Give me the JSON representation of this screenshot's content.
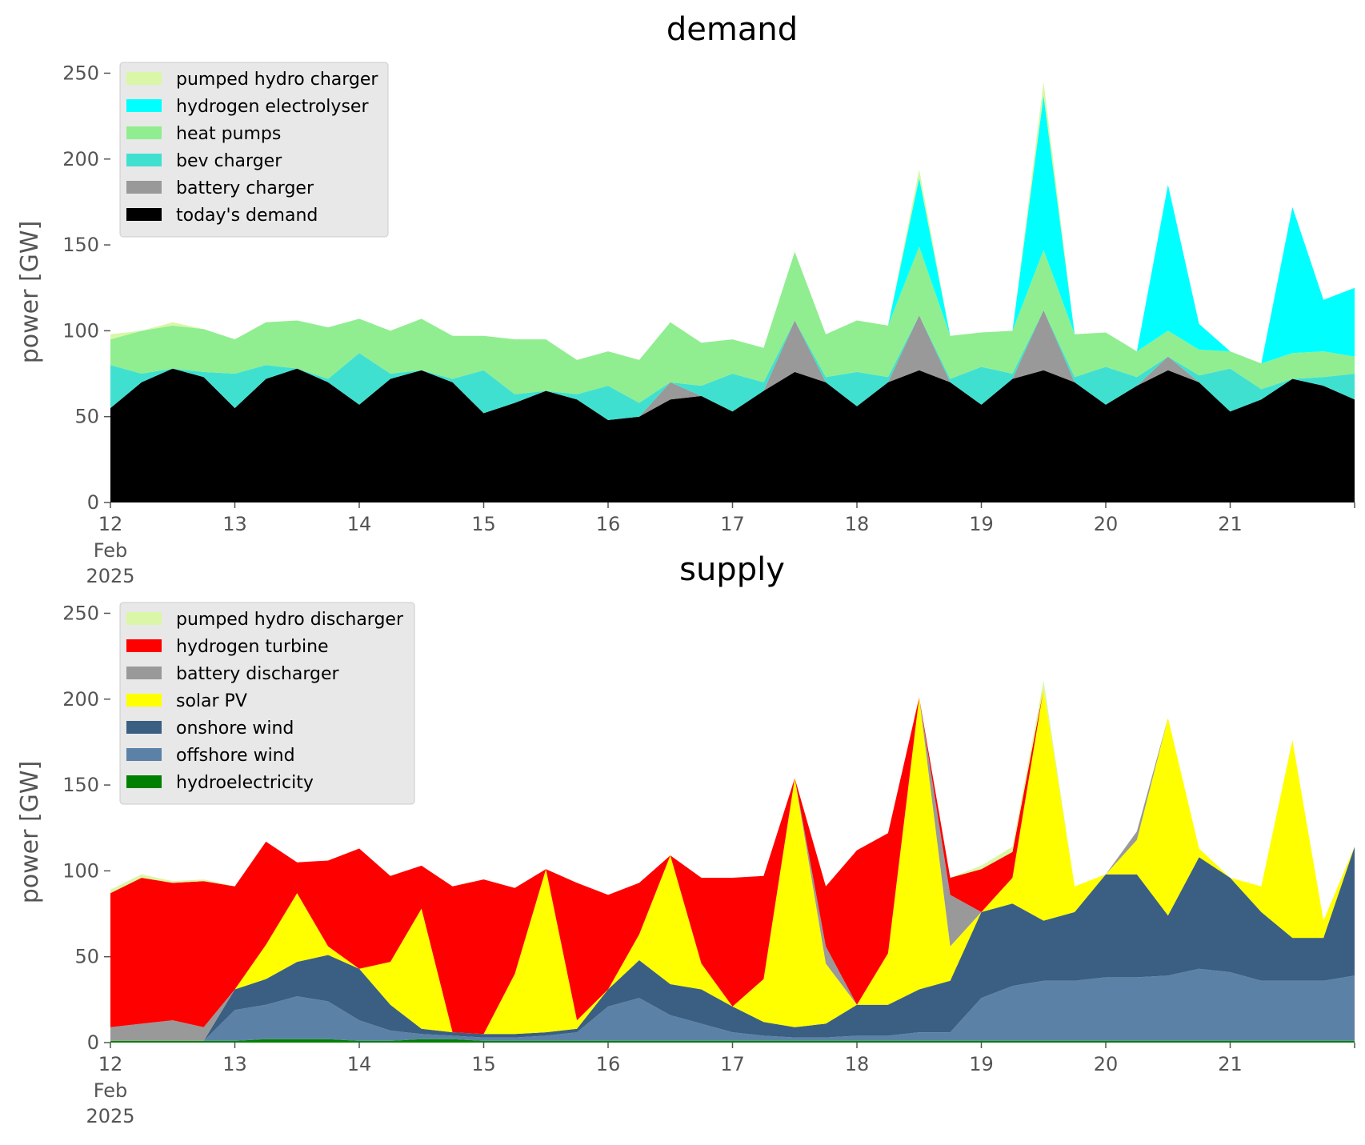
{
  "chart_data": [
    {
      "type": "area",
      "stacked": true,
      "title": "demand",
      "xlabel": "",
      "ylabel": "power [GW]",
      "ylim": [
        0,
        260
      ],
      "yticks": [
        0,
        50,
        100,
        150,
        200,
        250
      ],
      "xlim": [
        "2025-02-12 00:00",
        "2025-02-22 00:00"
      ],
      "xticks": [
        {
          "date": "2025-02-12",
          "label": "12",
          "sub": [
            "Feb",
            "2025"
          ]
        },
        {
          "date": "2025-02-13",
          "label": "13"
        },
        {
          "date": "2025-02-14",
          "label": "14"
        },
        {
          "date": "2025-02-15",
          "label": "15"
        },
        {
          "date": "2025-02-16",
          "label": "16"
        },
        {
          "date": "2025-02-17",
          "label": "17"
        },
        {
          "date": "2025-02-18",
          "label": "18"
        },
        {
          "date": "2025-02-19",
          "label": "19"
        },
        {
          "date": "2025-02-20",
          "label": "20"
        },
        {
          "date": "2025-02-21",
          "label": "21"
        }
      ],
      "grid": false,
      "legend_position": "top-left",
      "x": [
        "2025-02-12 00:00",
        "2025-02-12 06:00",
        "2025-02-12 12:00",
        "2025-02-12 18:00",
        "2025-02-13 00:00",
        "2025-02-13 06:00",
        "2025-02-13 12:00",
        "2025-02-13 18:00",
        "2025-02-14 00:00",
        "2025-02-14 06:00",
        "2025-02-14 12:00",
        "2025-02-14 18:00",
        "2025-02-15 00:00",
        "2025-02-15 06:00",
        "2025-02-15 12:00",
        "2025-02-15 18:00",
        "2025-02-16 00:00",
        "2025-02-16 06:00",
        "2025-02-16 12:00",
        "2025-02-16 18:00",
        "2025-02-17 00:00",
        "2025-02-17 06:00",
        "2025-02-17 12:00",
        "2025-02-17 18:00",
        "2025-02-18 00:00",
        "2025-02-18 06:00",
        "2025-02-18 12:00",
        "2025-02-18 18:00",
        "2025-02-19 00:00",
        "2025-02-19 06:00",
        "2025-02-19 12:00",
        "2025-02-19 18:00",
        "2025-02-20 00:00",
        "2025-02-20 06:00",
        "2025-02-20 12:00",
        "2025-02-20 18:00",
        "2025-02-21 00:00",
        "2025-02-21 06:00",
        "2025-02-21 12:00",
        "2025-02-21 18:00",
        "2025-02-22 00:00"
      ],
      "series": [
        {
          "name": "today's demand",
          "color": "#000000",
          "values": [
            55,
            70,
            78,
            73,
            55,
            72,
            78,
            70,
            57,
            72,
            77,
            70,
            52,
            58,
            65,
            60,
            48,
            50,
            60,
            62,
            53,
            65,
            76,
            70,
            56,
            70,
            77,
            70,
            57,
            72,
            77,
            70,
            57,
            68,
            77,
            70,
            53,
            60,
            72,
            68,
            60
          ]
        },
        {
          "name": "battery charger",
          "color": "#999999",
          "values": [
            0,
            0,
            0,
            0,
            0,
            0,
            0,
            0,
            0,
            0,
            0,
            0,
            0,
            0,
            0,
            0,
            0,
            0,
            10,
            0,
            0,
            0,
            30,
            0,
            0,
            0,
            32,
            0,
            0,
            0,
            35,
            0,
            0,
            0,
            8,
            0,
            0,
            0,
            0,
            0,
            0
          ]
        },
        {
          "name": "bev charger",
          "color": "#40e0d0",
          "values": [
            25,
            5,
            0,
            3,
            20,
            8,
            0,
            2,
            30,
            3,
            0,
            2,
            25,
            5,
            0,
            3,
            20,
            8,
            0,
            6,
            22,
            5,
            0,
            3,
            20,
            3,
            0,
            2,
            22,
            3,
            0,
            3,
            22,
            5,
            0,
            4,
            25,
            6,
            0,
            5,
            15
          ]
        },
        {
          "name": "heat pumps",
          "color": "#90ee90",
          "values": [
            15,
            25,
            25,
            25,
            20,
            25,
            28,
            30,
            20,
            25,
            30,
            25,
            20,
            32,
            30,
            20,
            20,
            25,
            35,
            25,
            20,
            20,
            40,
            25,
            30,
            30,
            40,
            25,
            20,
            25,
            35,
            25,
            20,
            15,
            15,
            15,
            10,
            15,
            15,
            15,
            10
          ]
        },
        {
          "name": "hydrogen electrolyser",
          "color": "#00ffff",
          "values": [
            0,
            0,
            0,
            0,
            0,
            0,
            0,
            0,
            0,
            0,
            0,
            0,
            0,
            0,
            0,
            0,
            0,
            0,
            0,
            0,
            0,
            0,
            0,
            0,
            0,
            0,
            40,
            0,
            0,
            0,
            90,
            0,
            0,
            0,
            85,
            15,
            0,
            0,
            85,
            30,
            40
          ]
        },
        {
          "name": "pumped hydro charger",
          "color": "#d9f7a6",
          "values": [
            3,
            0,
            2,
            0,
            0,
            0,
            0,
            0,
            0,
            0,
            0,
            0,
            0,
            0,
            0,
            0,
            0,
            0,
            0,
            0,
            0,
            0,
            0,
            0,
            0,
            0,
            5,
            0,
            0,
            0,
            8,
            0,
            0,
            0,
            0,
            0,
            0,
            0,
            0,
            0,
            0
          ]
        }
      ]
    },
    {
      "type": "area",
      "stacked": true,
      "title": "supply",
      "xlabel": "",
      "ylabel": "power [GW]",
      "ylim": [
        0,
        260
      ],
      "yticks": [
        0,
        50,
        100,
        150,
        200,
        250
      ],
      "xlim": [
        "2025-02-12 00:00",
        "2025-02-22 00:00"
      ],
      "xticks": [
        {
          "date": "2025-02-12",
          "label": "12",
          "sub": [
            "Feb",
            "2025"
          ]
        },
        {
          "date": "2025-02-13",
          "label": "13"
        },
        {
          "date": "2025-02-14",
          "label": "14"
        },
        {
          "date": "2025-02-15",
          "label": "15"
        },
        {
          "date": "2025-02-16",
          "label": "16"
        },
        {
          "date": "2025-02-17",
          "label": "17"
        },
        {
          "date": "2025-02-18",
          "label": "18"
        },
        {
          "date": "2025-02-19",
          "label": "19"
        },
        {
          "date": "2025-02-20",
          "label": "20"
        },
        {
          "date": "2025-02-21",
          "label": "21"
        }
      ],
      "grid": false,
      "legend_position": "top-left",
      "x": [
        "2025-02-12 00:00",
        "2025-02-12 06:00",
        "2025-02-12 12:00",
        "2025-02-12 18:00",
        "2025-02-13 00:00",
        "2025-02-13 06:00",
        "2025-02-13 12:00",
        "2025-02-13 18:00",
        "2025-02-14 00:00",
        "2025-02-14 06:00",
        "2025-02-14 12:00",
        "2025-02-14 18:00",
        "2025-02-15 00:00",
        "2025-02-15 06:00",
        "2025-02-15 12:00",
        "2025-02-15 18:00",
        "2025-02-16 00:00",
        "2025-02-16 06:00",
        "2025-02-16 12:00",
        "2025-02-16 18:00",
        "2025-02-17 00:00",
        "2025-02-17 06:00",
        "2025-02-17 12:00",
        "2025-02-17 18:00",
        "2025-02-18 00:00",
        "2025-02-18 06:00",
        "2025-02-18 12:00",
        "2025-02-18 18:00",
        "2025-02-19 00:00",
        "2025-02-19 06:00",
        "2025-02-19 12:00",
        "2025-02-19 18:00",
        "2025-02-20 00:00",
        "2025-02-20 06:00",
        "2025-02-20 12:00",
        "2025-02-20 18:00",
        "2025-02-21 00:00",
        "2025-02-21 06:00",
        "2025-02-21 12:00",
        "2025-02-21 18:00",
        "2025-02-22 00:00"
      ],
      "series": [
        {
          "name": "hydroelectricity",
          "color": "#008000",
          "values": [
            1,
            1,
            1,
            1,
            1,
            2,
            2,
            2,
            1,
            1,
            2,
            2,
            1,
            1,
            1,
            1,
            1,
            1,
            1,
            1,
            1,
            1,
            1,
            1,
            1,
            1,
            1,
            1,
            1,
            1,
            1,
            1,
            1,
            1,
            1,
            1,
            1,
            1,
            1,
            1,
            1
          ]
        },
        {
          "name": "offshore wind",
          "color": "#5b82a6",
          "values": [
            0,
            0,
            0,
            0,
            18,
            20,
            25,
            22,
            12,
            6,
            3,
            2,
            2,
            2,
            3,
            5,
            20,
            25,
            15,
            10,
            5,
            3,
            2,
            2,
            3,
            3,
            5,
            5,
            25,
            32,
            35,
            35,
            37,
            37,
            38,
            42,
            40,
            35,
            35,
            35,
            38
          ]
        },
        {
          "name": "onshore wind",
          "color": "#3b5f82",
          "values": [
            0,
            0,
            0,
            0,
            12,
            15,
            20,
            27,
            30,
            15,
            3,
            2,
            2,
            2,
            2,
            2,
            10,
            22,
            18,
            20,
            15,
            8,
            6,
            8,
            18,
            18,
            25,
            30,
            50,
            48,
            35,
            40,
            60,
            60,
            35,
            65,
            55,
            40,
            25,
            25,
            75
          ]
        },
        {
          "name": "solar PV",
          "color": "#ffff00",
          "values": [
            0,
            0,
            0,
            0,
            0,
            20,
            40,
            5,
            0,
            25,
            70,
            0,
            0,
            35,
            95,
            5,
            0,
            15,
            75,
            15,
            0,
            25,
            145,
            35,
            0,
            30,
            170,
            20,
            0,
            15,
            135,
            15,
            0,
            20,
            115,
            5,
            0,
            15,
            115,
            10,
            0
          ]
        },
        {
          "name": "battery discharger",
          "color": "#999999",
          "values": [
            8,
            10,
            12,
            8,
            0,
            0,
            0,
            0,
            0,
            0,
            0,
            0,
            0,
            0,
            0,
            0,
            0,
            0,
            0,
            0,
            0,
            0,
            0,
            10,
            0,
            0,
            0,
            30,
            0,
            0,
            0,
            0,
            0,
            5,
            0,
            0,
            0,
            0,
            0,
            0,
            0
          ]
        },
        {
          "name": "hydrogen turbine",
          "color": "#ff0000",
          "values": [
            78,
            85,
            80,
            85,
            60,
            60,
            18,
            50,
            70,
            50,
            25,
            85,
            90,
            50,
            0,
            80,
            55,
            30,
            0,
            50,
            75,
            60,
            0,
            35,
            90,
            70,
            0,
            10,
            25,
            15,
            0,
            0,
            0,
            0,
            0,
            0,
            0,
            0,
            0,
            0,
            0
          ]
        },
        {
          "name": "pumped hydro discharger",
          "color": "#d9f7a6",
          "values": [
            2,
            2,
            1,
            1,
            0,
            0,
            0,
            0,
            0,
            0,
            0,
            0,
            0,
            0,
            0,
            0,
            0,
            0,
            0,
            0,
            0,
            0,
            0,
            0,
            0,
            0,
            0,
            0,
            2,
            3,
            5,
            0,
            0,
            0,
            0,
            0,
            0,
            0,
            0,
            0,
            0
          ]
        }
      ]
    }
  ]
}
